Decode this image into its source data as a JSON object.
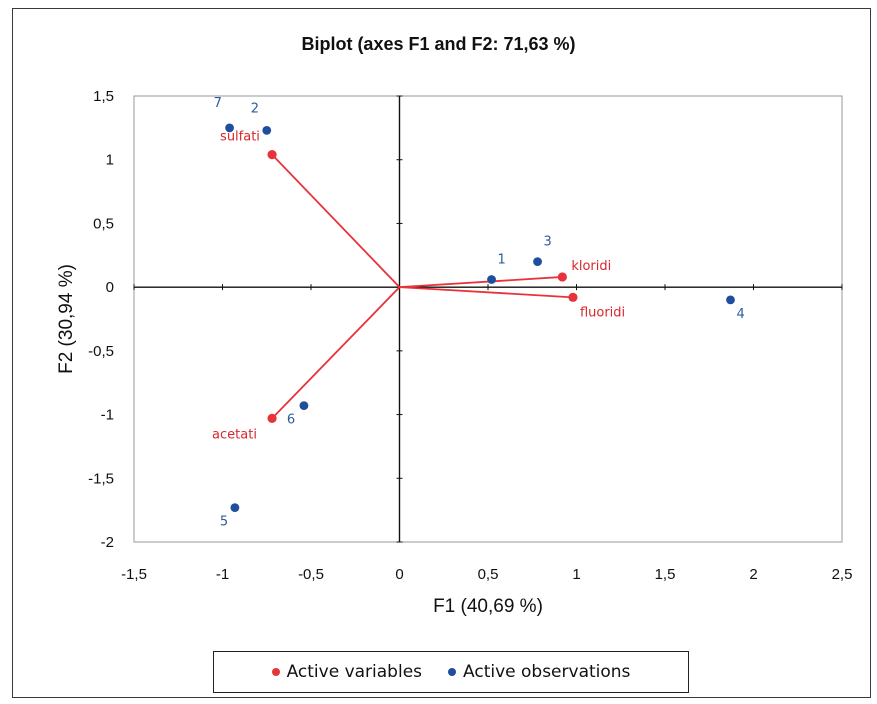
{
  "chart_data": {
    "type": "scatter",
    "title": "Biplot (axes F1 and F2: 71,63 %)",
    "xlabel": "F1 (40,69 %)",
    "ylabel": "F2 (30,94 %)",
    "xlim": [
      -1.5,
      2.5
    ],
    "ylim": [
      -2,
      1.5
    ],
    "x_ticks": [
      "-1,5",
      "-1",
      "-0,5",
      "0",
      "0,5",
      "1",
      "1,5",
      "2",
      "2,5"
    ],
    "y_ticks": [
      "1,5",
      "1",
      "0,5",
      "0",
      "-0,5",
      "-1",
      "-1,5",
      "-2"
    ],
    "grid": false,
    "legend_position": "bottom",
    "series": [
      {
        "name": "Active variables",
        "color": "#e8333b",
        "points": [
          {
            "label": "sulfati",
            "x": -0.72,
            "y": 1.04
          },
          {
            "label": "kloridi",
            "x": 0.92,
            "y": 0.08
          },
          {
            "label": "fluoridi",
            "x": 0.98,
            "y": -0.08
          },
          {
            "label": "acetati",
            "x": -0.72,
            "y": -1.03
          }
        ]
      },
      {
        "name": "Active observations",
        "color": "#1f4e9c",
        "points": [
          {
            "label": "1",
            "x": 0.52,
            "y": 0.06
          },
          {
            "label": "2",
            "x": -0.75,
            "y": 1.23
          },
          {
            "label": "3",
            "x": 0.78,
            "y": 0.2
          },
          {
            "label": "4",
            "x": 1.87,
            "y": -0.1
          },
          {
            "label": "5",
            "x": -0.93,
            "y": -1.73
          },
          {
            "label": "6",
            "x": -0.54,
            "y": -0.93
          },
          {
            "label": "7",
            "x": -0.96,
            "y": 1.25
          }
        ]
      }
    ]
  }
}
